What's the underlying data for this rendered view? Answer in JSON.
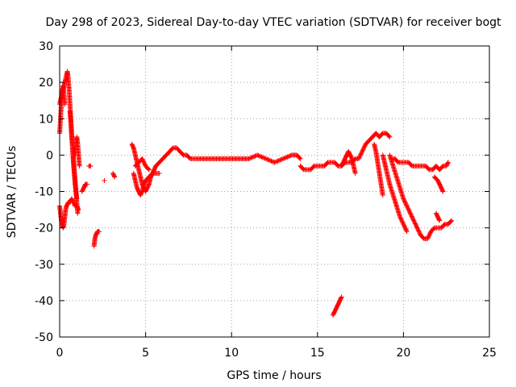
{
  "chart_data": {
    "type": "scatter",
    "title": "Day 298 of 2023, Sidereal Day-to-day VTEC variation (SDTVAR) for receiver bogt",
    "xlabel": "GPS time / hours",
    "ylabel": "SDTVAR / TECUs",
    "xlim": [
      0,
      25
    ],
    "ylim": [
      -50,
      30
    ],
    "xticks": [
      0,
      5,
      10,
      15,
      20,
      25
    ],
    "yticks": [
      -50,
      -40,
      -30,
      -20,
      -10,
      0,
      10,
      20,
      30
    ],
    "xtick_labels": [
      "0",
      "5",
      "10",
      "15",
      "20",
      "25"
    ],
    "ytick_labels": [
      "-50",
      "-40",
      "-30",
      "-20",
      "-10",
      "0",
      "10",
      "20",
      "30"
    ],
    "grid": true,
    "marker": "+",
    "color": "#ff0000",
    "series": [
      {
        "name": "SDTVAR",
        "tracks": [
          [
            [
              0.0,
              14
            ],
            [
              0.1,
              16
            ],
            [
              0.2,
              18
            ],
            [
              0.3,
              20
            ],
            [
              0.4,
              22
            ],
            [
              0.45,
              23
            ],
            [
              0.5,
              21
            ],
            [
              0.55,
              18
            ],
            [
              0.6,
              14
            ],
            [
              0.65,
              10
            ],
            [
              0.7,
              6
            ],
            [
              0.75,
              2
            ],
            [
              0.8,
              -2
            ],
            [
              0.85,
              -5
            ],
            [
              0.9,
              -8
            ],
            [
              1.0,
              -12
            ]
          ],
          [
            [
              0.0,
              6
            ],
            [
              0.05,
              10
            ],
            [
              0.1,
              14
            ],
            [
              0.15,
              17
            ],
            [
              0.2,
              19
            ],
            [
              0.25,
              17
            ],
            [
              0.3,
              14
            ]
          ],
          [
            [
              0.0,
              -14
            ],
            [
              0.05,
              -16
            ],
            [
              0.1,
              -18
            ],
            [
              0.15,
              -19
            ],
            [
              0.2,
              -20
            ],
            [
              0.25,
              -19
            ],
            [
              0.3,
              -17
            ],
            [
              0.35,
              -15
            ],
            [
              0.4,
              -14
            ],
            [
              0.5,
              -13
            ],
            [
              0.6,
              -13
            ],
            [
              0.7,
              -12
            ],
            [
              0.8,
              -13
            ],
            [
              0.9,
              -14
            ],
            [
              1.0,
              -14
            ],
            [
              1.1,
              -15
            ]
          ],
          [
            [
              0.6,
              12
            ],
            [
              0.65,
              9
            ],
            [
              0.7,
              5
            ],
            [
              0.75,
              2
            ],
            [
              0.8,
              -1
            ],
            [
              0.85,
              -4
            ],
            [
              0.9,
              -7
            ],
            [
              0.95,
              -10
            ],
            [
              1.0,
              -13
            ],
            [
              1.05,
              -16
            ]
          ],
          [
            [
              0.9,
              0
            ],
            [
              0.95,
              3
            ],
            [
              1.0,
              5
            ],
            [
              1.05,
              3
            ],
            [
              1.1,
              0
            ],
            [
              1.15,
              -3
            ]
          ],
          [
            [
              1.3,
              -10
            ],
            [
              1.4,
              -9
            ],
            [
              1.5,
              -8
            ],
            [
              1.6,
              -8
            ]
          ],
          [
            [
              1.7,
              -3
            ],
            [
              1.8,
              -3
            ]
          ],
          [
            [
              2.0,
              -25
            ],
            [
              2.05,
              -23
            ],
            [
              2.1,
              -22
            ],
            [
              2.2,
              -21
            ],
            [
              2.3,
              -21
            ]
          ],
          [
            [
              2.6,
              -7
            ]
          ],
          [
            [
              3.1,
              -5
            ],
            [
              3.2,
              -6
            ]
          ],
          [
            [
              4.2,
              3
            ],
            [
              4.3,
              2
            ],
            [
              4.4,
              0
            ],
            [
              4.5,
              -2
            ],
            [
              4.6,
              -4
            ],
            [
              4.7,
              -6
            ],
            [
              4.8,
              -8
            ],
            [
              4.9,
              -9
            ],
            [
              5.0,
              -10
            ],
            [
              5.1,
              -9
            ],
            [
              5.2,
              -8
            ],
            [
              5.3,
              -6
            ],
            [
              5.4,
              -5
            ],
            [
              5.5,
              -4
            ],
            [
              5.6,
              -3
            ],
            [
              5.8,
              -2
            ],
            [
              6.0,
              -1
            ],
            [
              6.2,
              0
            ],
            [
              6.4,
              1
            ],
            [
              6.6,
              2
            ],
            [
              6.8,
              2
            ],
            [
              7.0,
              1
            ],
            [
              7.2,
              0
            ],
            [
              7.4,
              0
            ],
            [
              7.6,
              -1
            ],
            [
              7.8,
              -1
            ],
            [
              8.0,
              -1
            ],
            [
              8.5,
              -1
            ],
            [
              9.0,
              -1
            ],
            [
              9.5,
              -1
            ],
            [
              10.0,
              -1
            ],
            [
              10.5,
              -1
            ],
            [
              11.0,
              -1
            ],
            [
              11.5,
              0
            ],
            [
              12.0,
              -1
            ],
            [
              12.5,
              -2
            ],
            [
              13.0,
              -1
            ],
            [
              13.5,
              0
            ],
            [
              13.8,
              0
            ],
            [
              14.0,
              -1
            ]
          ],
          [
            [
              4.3,
              -5
            ],
            [
              4.4,
              -7
            ],
            [
              4.5,
              -9
            ],
            [
              4.6,
              -10
            ],
            [
              4.7,
              -11
            ],
            [
              4.8,
              -10
            ],
            [
              4.9,
              -8
            ],
            [
              5.0,
              -7
            ],
            [
              5.2,
              -6
            ],
            [
              5.4,
              -5
            ],
            [
              5.6,
              -5
            ],
            [
              5.8,
              -5
            ]
          ],
          [
            [
              4.4,
              -3
            ],
            [
              4.6,
              -2
            ],
            [
              4.8,
              -1
            ],
            [
              5.0,
              -3
            ],
            [
              5.2,
              -4
            ]
          ],
          [
            [
              14.0,
              -3
            ],
            [
              14.2,
              -4
            ],
            [
              14.4,
              -4
            ],
            [
              14.6,
              -4
            ],
            [
              14.8,
              -3
            ],
            [
              15.0,
              -3
            ],
            [
              15.2,
              -3
            ],
            [
              15.4,
              -3
            ],
            [
              15.6,
              -2
            ],
            [
              15.8,
              -2
            ],
            [
              16.0,
              -2
            ],
            [
              16.2,
              -3
            ],
            [
              16.4,
              -3
            ],
            [
              16.6,
              -2
            ],
            [
              16.8,
              -2
            ],
            [
              17.0,
              -2
            ],
            [
              17.2,
              -1
            ],
            [
              17.4,
              -1
            ],
            [
              17.6,
              1
            ],
            [
              17.8,
              3
            ],
            [
              18.0,
              4
            ],
            [
              18.2,
              5
            ],
            [
              18.4,
              6
            ],
            [
              18.6,
              5
            ],
            [
              18.8,
              6
            ],
            [
              19.0,
              6
            ],
            [
              19.2,
              5
            ]
          ],
          [
            [
              16.4,
              -3
            ],
            [
              16.5,
              -2
            ],
            [
              16.6,
              -1
            ],
            [
              16.7,
              0
            ],
            [
              16.8,
              1
            ],
            [
              16.9,
              0
            ],
            [
              17.0,
              -1
            ],
            [
              17.1,
              -3
            ],
            [
              17.2,
              -5
            ]
          ],
          [
            [
              15.9,
              -44
            ],
            [
              16.0,
              -43
            ],
            [
              16.1,
              -42
            ],
            [
              16.2,
              -41
            ],
            [
              16.3,
              -40
            ],
            [
              16.4,
              -39
            ]
          ],
          [
            [
              18.3,
              3
            ],
            [
              18.4,
              1
            ],
            [
              18.5,
              -2
            ],
            [
              18.6,
              -5
            ],
            [
              18.7,
              -8
            ],
            [
              18.8,
              -11
            ]
          ],
          [
            [
              18.8,
              0
            ],
            [
              18.9,
              -2
            ],
            [
              19.0,
              -4
            ],
            [
              19.2,
              -8
            ],
            [
              19.4,
              -11
            ],
            [
              19.6,
              -14
            ],
            [
              19.8,
              -17
            ],
            [
              20.0,
              -19
            ],
            [
              20.2,
              -21
            ]
          ],
          [
            [
              19.2,
              0
            ],
            [
              19.4,
              -3
            ],
            [
              19.6,
              -6
            ],
            [
              19.8,
              -9
            ],
            [
              20.0,
              -12
            ],
            [
              20.2,
              -14
            ],
            [
              20.4,
              -16
            ],
            [
              20.6,
              -18
            ],
            [
              20.8,
              -20
            ],
            [
              21.0,
              -22
            ],
            [
              21.2,
              -23
            ],
            [
              21.4,
              -23
            ],
            [
              21.6,
              -21
            ],
            [
              21.8,
              -20
            ],
            [
              22.0,
              -20
            ],
            [
              22.2,
              -20
            ],
            [
              22.4,
              -19
            ],
            [
              22.6,
              -19
            ],
            [
              22.8,
              -18
            ]
          ],
          [
            [
              19.3,
              -1
            ],
            [
              19.5,
              -1
            ],
            [
              19.7,
              -2
            ],
            [
              19.9,
              -2
            ],
            [
              20.1,
              -2
            ],
            [
              20.3,
              -2
            ],
            [
              20.5,
              -3
            ],
            [
              20.7,
              -3
            ],
            [
              20.9,
              -3
            ],
            [
              21.1,
              -3
            ],
            [
              21.3,
              -3
            ],
            [
              21.5,
              -4
            ],
            [
              21.7,
              -4
            ],
            [
              21.9,
              -3
            ],
            [
              22.1,
              -4
            ],
            [
              22.3,
              -3
            ],
            [
              22.5,
              -3
            ],
            [
              22.6,
              -2
            ]
          ],
          [
            [
              21.8,
              -6
            ],
            [
              22.0,
              -7
            ],
            [
              22.1,
              -8
            ],
            [
              22.2,
              -9
            ],
            [
              22.3,
              -10
            ]
          ],
          [
            [
              21.9,
              -16
            ],
            [
              22.0,
              -17
            ],
            [
              22.1,
              -18
            ]
          ]
        ]
      }
    ]
  }
}
